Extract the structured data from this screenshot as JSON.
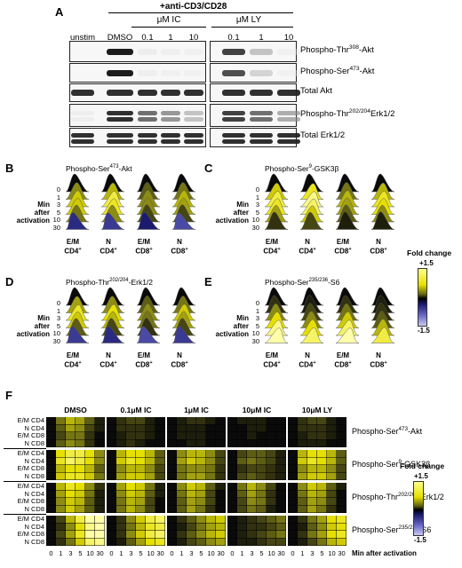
{
  "panelA": {
    "letter": "A",
    "header": "+anti-CD3/CD28",
    "ic_label": "μM IC",
    "ly_label": "μM LY",
    "lanes": [
      "unstim",
      "DMSO",
      "0.1",
      "1",
      "10",
      "0.1",
      "1",
      "10"
    ],
    "blots": [
      {
        "label_pre": "Phospho-Thr",
        "label_sup": "308",
        "label_post": "-Akt",
        "intensities": [
          0,
          0.95,
          0.06,
          0.04,
          0.03,
          0.85,
          0.35,
          0.03
        ]
      },
      {
        "label_pre": "Phospho-Ser",
        "label_sup": "473",
        "label_post": "-Akt",
        "intensities": [
          0,
          0.95,
          0.04,
          0.03,
          0.02,
          0.8,
          0.25,
          0.02
        ]
      },
      {
        "label_pre": "Total Akt",
        "label_sup": "",
        "label_post": "",
        "intensities": [
          0.9,
          0.9,
          0.9,
          0.9,
          0.9,
          0.9,
          0.9,
          0.9
        ]
      },
      {
        "label_pre": "Phospho-Thr",
        "label_sup": "202/204",
        "label_post": "Erk1/2",
        "intensities": [
          0.05,
          0.9,
          0.7,
          0.55,
          0.35,
          0.85,
          0.7,
          0.45
        ]
      },
      {
        "label_pre": "Total Erk1/2",
        "label_sup": "",
        "label_post": "",
        "intensities": [
          0.9,
          0.9,
          0.9,
          0.9,
          0.9,
          0.9,
          0.9,
          0.9
        ]
      }
    ]
  },
  "flow": {
    "min_label_1": "Min",
    "min_label_2": "after",
    "min_label_3": "activation",
    "times": [
      "0",
      "1",
      "3",
      "5",
      "10",
      "30"
    ],
    "populations": [
      {
        "l1": "E/M",
        "l2": "CD4",
        "sup": "+"
      },
      {
        "l1": "N",
        "l2": "CD4",
        "sup": "+"
      },
      {
        "l1": "E/M",
        "l2": "CD8",
        "sup": "+"
      },
      {
        "l1": "N",
        "l2": "CD8",
        "sup": "+"
      }
    ],
    "panels": [
      {
        "letter": "B",
        "title_pre": "Phospho-Ser",
        "title_sup": "473",
        "title_post": "-Akt",
        "fold": [
          [
            0,
            0.6,
            0.9,
            0.9,
            0.5,
            -0.5
          ],
          [
            0,
            0.8,
            1.2,
            1.1,
            0.6,
            -0.6
          ],
          [
            0,
            0.4,
            0.6,
            0.6,
            0.3,
            -0.4
          ],
          [
            0,
            0.5,
            0.8,
            0.7,
            0.3,
            -0.7
          ]
        ]
      },
      {
        "letter": "C",
        "title_pre": "Phospho-Ser",
        "title_sup": "9",
        "title_post": "-GSK3β",
        "fold": [
          [
            0,
            0.9,
            1.2,
            1.1,
            0.7,
            0.2
          ],
          [
            0,
            1.1,
            1.4,
            1.3,
            0.9,
            0.3
          ],
          [
            0,
            0.5,
            0.8,
            0.7,
            0.4,
            0.1
          ],
          [
            0,
            0.8,
            1.1,
            1,
            0.6,
            0.1
          ]
        ]
      },
      {
        "letter": "D",
        "title_pre": "Phospho-Thr",
        "title_sup": "202/204",
        "title_post": "-Erk1/2",
        "fold": [
          [
            0,
            0.7,
            1.1,
            0.9,
            0.4,
            -0.6
          ],
          [
            0,
            0.6,
            1,
            0.8,
            0.3,
            -0.5
          ],
          [
            0,
            0.4,
            0.6,
            0.5,
            0.2,
            -0.7
          ],
          [
            0,
            0.5,
            0.9,
            0.7,
            0.3,
            -0.6
          ]
        ]
      },
      {
        "letter": "E",
        "title_pre": "Phospho-Ser",
        "title_sup": "235/236",
        "title_post": "-S6",
        "fold": [
          [
            0,
            0.2,
            0.6,
            1,
            1.4,
            1.5
          ],
          [
            0,
            0.1,
            0.3,
            0.6,
            1,
            1.3
          ],
          [
            0,
            0.2,
            0.5,
            0.9,
            1.3,
            1.5
          ],
          [
            0,
            0.1,
            0.2,
            0.4,
            0.8,
            1.2
          ]
        ]
      }
    ]
  },
  "colorbar": {
    "title": "Fold change",
    "max": "+1.5",
    "min": "-1.5"
  },
  "panelF": {
    "letter": "F",
    "conditions": [
      "DMSO",
      "0.1μM IC",
      "1μM IC",
      "10μM IC",
      "10μM LY"
    ],
    "rows": [
      "E/M CD4",
      "N CD4",
      "E/M CD8",
      "N CD8"
    ],
    "x_ticks": [
      "0",
      "1",
      "3",
      "5",
      "10",
      "30"
    ],
    "x_label": "Min after activation",
    "colorbar_title": "Fold change",
    "colorbar_max": "+1.5",
    "colorbar_min": "-1.5",
    "blocks": [
      {
        "label_pre": "Phospho-Ser",
        "label_sup": "473",
        "label_post": "-Akt",
        "data": [
          [
            [
              0,
              0.5,
              0.8,
              0.7,
              0.4,
              0.1
            ],
            [
              0,
              0.4,
              0.7,
              0.6,
              0.3,
              0.1
            ],
            [
              0,
              0.3,
              0.5,
              0.5,
              0.2,
              0
            ],
            [
              0,
              0.4,
              0.6,
              0.5,
              0.2,
              0
            ]
          ],
          [
            [
              0,
              0.2,
              0.3,
              0.3,
              0.1,
              0
            ],
            [
              0,
              0.2,
              0.2,
              0.2,
              0.1,
              0
            ],
            [
              0,
              0.1,
              0.2,
              0.2,
              0.1,
              0
            ],
            [
              0,
              0.1,
              0.2,
              0.1,
              0,
              0
            ]
          ],
          [
            [
              0,
              0.1,
              0.2,
              0.2,
              0.1,
              0
            ],
            [
              0,
              0.1,
              0.1,
              0.1,
              0,
              0
            ],
            [
              0,
              0.1,
              0.1,
              0.1,
              0,
              0
            ],
            [
              0,
              0,
              0.1,
              0.1,
              0,
              0
            ]
          ],
          [
            [
              0,
              0.1,
              0.1,
              0.1,
              0,
              0
            ],
            [
              0,
              0,
              0.1,
              0.1,
              0,
              0
            ],
            [
              0,
              0,
              0.1,
              0,
              0,
              0
            ],
            [
              0,
              0,
              0,
              0,
              0,
              0
            ]
          ],
          [
            [
              0,
              0.2,
              0.3,
              0.3,
              0.1,
              0
            ],
            [
              0,
              0.2,
              0.2,
              0.2,
              0.1,
              0
            ],
            [
              0,
              0.1,
              0.2,
              0.2,
              0.1,
              0
            ],
            [
              0,
              0.1,
              0.1,
              0.1,
              0,
              0
            ]
          ]
        ]
      },
      {
        "label_pre": "Phospho-Ser",
        "label_sup": "9",
        "label_post": "-GSK3β",
        "data": [
          [
            [
              0,
              1,
              1.2,
              1.2,
              1,
              0.6
            ],
            [
              0,
              1.1,
              1.3,
              1.2,
              1,
              0.6
            ],
            [
              0,
              0.8,
              1,
              1,
              0.8,
              0.4
            ],
            [
              0,
              0.9,
              1.1,
              1.1,
              0.9,
              0.5
            ]
          ],
          [
            [
              0,
              0.8,
              1,
              1,
              0.8,
              0.4
            ],
            [
              0,
              0.9,
              1.1,
              1,
              0.8,
              0.4
            ],
            [
              0,
              0.6,
              0.8,
              0.8,
              0.6,
              0.3
            ],
            [
              0,
              0.7,
              0.9,
              0.9,
              0.7,
              0.3
            ]
          ],
          [
            [
              0,
              0.6,
              0.8,
              0.8,
              0.6,
              0.3
            ],
            [
              0,
              0.7,
              0.9,
              0.8,
              0.6,
              0.3
            ],
            [
              0,
              0.5,
              0.6,
              0.6,
              0.5,
              0.2
            ],
            [
              0,
              0.5,
              0.7,
              0.7,
              0.5,
              0.2
            ]
          ],
          [
            [
              0,
              0.3,
              0.4,
              0.4,
              0.3,
              0.1
            ],
            [
              0,
              0.4,
              0.5,
              0.4,
              0.3,
              0.1
            ],
            [
              0,
              0.2,
              0.3,
              0.3,
              0.2,
              0.1
            ],
            [
              0,
              0.3,
              0.4,
              0.3,
              0.2,
              0.1
            ]
          ],
          [
            [
              0,
              0.8,
              1,
              1,
              0.8,
              0.4
            ],
            [
              0,
              0.9,
              1.1,
              1,
              0.8,
              0.4
            ],
            [
              0,
              0.6,
              0.8,
              0.8,
              0.6,
              0.3
            ],
            [
              0,
              0.7,
              0.9,
              0.9,
              0.7,
              0.3
            ]
          ]
        ]
      },
      {
        "label_pre": "Phospho-Thr",
        "label_sup": "202/204",
        "label_post": "-Erk1/2",
        "data": [
          [
            [
              0,
              0.8,
              1.1,
              1,
              0.6,
              0.2
            ],
            [
              0,
              0.7,
              1,
              0.9,
              0.5,
              0.1
            ],
            [
              0,
              0.6,
              0.9,
              0.8,
              0.4,
              0.1
            ],
            [
              0,
              0.6,
              0.9,
              0.7,
              0.4,
              0.1
            ]
          ],
          [
            [
              0,
              0.7,
              1,
              0.9,
              0.5,
              0.1
            ],
            [
              0,
              0.6,
              0.9,
              0.8,
              0.4,
              0.1
            ],
            [
              0,
              0.5,
              0.8,
              0.7,
              0.3,
              0
            ],
            [
              0,
              0.5,
              0.8,
              0.6,
              0.3,
              0
            ]
          ],
          [
            [
              0,
              0.6,
              0.9,
              0.8,
              0.4,
              0.1
            ],
            [
              0,
              0.5,
              0.8,
              0.7,
              0.3,
              0
            ],
            [
              0,
              0.4,
              0.7,
              0.6,
              0.3,
              0
            ],
            [
              0,
              0.4,
              0.7,
              0.5,
              0.2,
              0
            ]
          ],
          [
            [
              0,
              0.5,
              0.8,
              0.6,
              0.3,
              0
            ],
            [
              0,
              0.4,
              0.7,
              0.5,
              0.2,
              0
            ],
            [
              0,
              0.3,
              0.6,
              0.5,
              0.2,
              0
            ],
            [
              0,
              0.3,
              0.5,
              0.4,
              0.1,
              0
            ]
          ],
          [
            [
              0,
              0.6,
              0.9,
              0.8,
              0.4,
              0.1
            ],
            [
              0,
              0.5,
              0.8,
              0.7,
              0.3,
              0
            ],
            [
              0,
              0.4,
              0.7,
              0.6,
              0.3,
              0
            ],
            [
              0,
              0.4,
              0.7,
              0.5,
              0.2,
              0
            ]
          ]
        ]
      },
      {
        "label_pre": "Phospho-Ser",
        "label_sup": "235/236",
        "label_post": "-S6",
        "data": [
          [
            [
              0,
              0.3,
              0.8,
              1.2,
              1.5,
              1.5
            ],
            [
              0,
              0.2,
              0.6,
              1,
              1.4,
              1.5
            ],
            [
              0,
              0.3,
              0.7,
              1.1,
              1.5,
              1.5
            ],
            [
              0,
              0.2,
              0.5,
              0.9,
              1.3,
              1.4
            ]
          ],
          [
            [
              0,
              0.2,
              0.6,
              0.9,
              1.2,
              1.3
            ],
            [
              0,
              0.2,
              0.5,
              0.8,
              1.1,
              1.2
            ],
            [
              0,
              0.2,
              0.6,
              0.9,
              1.2,
              1.3
            ],
            [
              0,
              0.1,
              0.4,
              0.7,
              1,
              1.1
            ]
          ],
          [
            [
              0,
              0.2,
              0.4,
              0.6,
              0.8,
              0.9
            ],
            [
              0,
              0.1,
              0.3,
              0.5,
              0.7,
              0.8
            ],
            [
              0,
              0.2,
              0.4,
              0.6,
              0.8,
              0.9
            ],
            [
              0,
              0.1,
              0.3,
              0.4,
              0.6,
              0.7
            ]
          ],
          [
            [
              0,
              0.1,
              0.2,
              0.3,
              0.4,
              0.5
            ],
            [
              0,
              0.1,
              0.2,
              0.2,
              0.3,
              0.4
            ],
            [
              0,
              0.1,
              0.2,
              0.3,
              0.4,
              0.5
            ],
            [
              0,
              0.1,
              0.1,
              0.2,
              0.3,
              0.3
            ]
          ],
          [
            [
              0,
              0.2,
              0.5,
              0.7,
              1,
              1.1
            ],
            [
              0,
              0.1,
              0.4,
              0.6,
              0.9,
              1
            ],
            [
              0,
              0.2,
              0.5,
              0.7,
              1,
              1.1
            ],
            [
              0,
              0.1,
              0.3,
              0.5,
              0.8,
              0.9
            ]
          ]
        ]
      }
    ]
  }
}
